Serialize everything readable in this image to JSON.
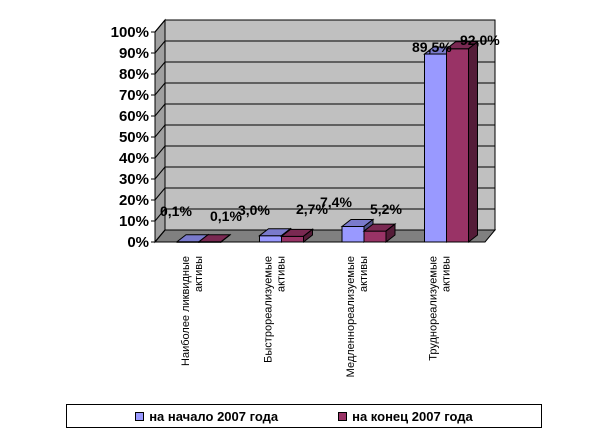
{
  "chart_data": {
    "type": "bar",
    "style": "3d-clustered-column",
    "categories": [
      [
        "Наиболее ликвидные",
        "активы"
      ],
      [
        "Быстрореализуемые",
        "активы"
      ],
      [
        "Медленнореализуемые",
        "активы"
      ],
      [
        "Труднореализуемые",
        "активы"
      ]
    ],
    "series": [
      {
        "name": "на начало 2007 года",
        "values": [
          0.1,
          3.0,
          7.4,
          89.5
        ],
        "labels": [
          "0,1%",
          "3,0%",
          "7,4%",
          "89,5%"
        ],
        "color": "#9999ff"
      },
      {
        "name": "на конец 2007 года",
        "values": [
          0.1,
          2.7,
          5.2,
          92.0
        ],
        "labels": [
          "0,1%",
          "2,7%",
          "5,2%",
          "92,0%"
        ],
        "color": "#993366"
      }
    ],
    "yticks": [
      "0%",
      "10%",
      "20%",
      "30%",
      "40%",
      "50%",
      "60%",
      "70%",
      "80%",
      "90%",
      "100%"
    ],
    "ylim": [
      0,
      100
    ],
    "grid": true,
    "wall_color": "#c0c0c0",
    "legend_position": "bottom"
  }
}
